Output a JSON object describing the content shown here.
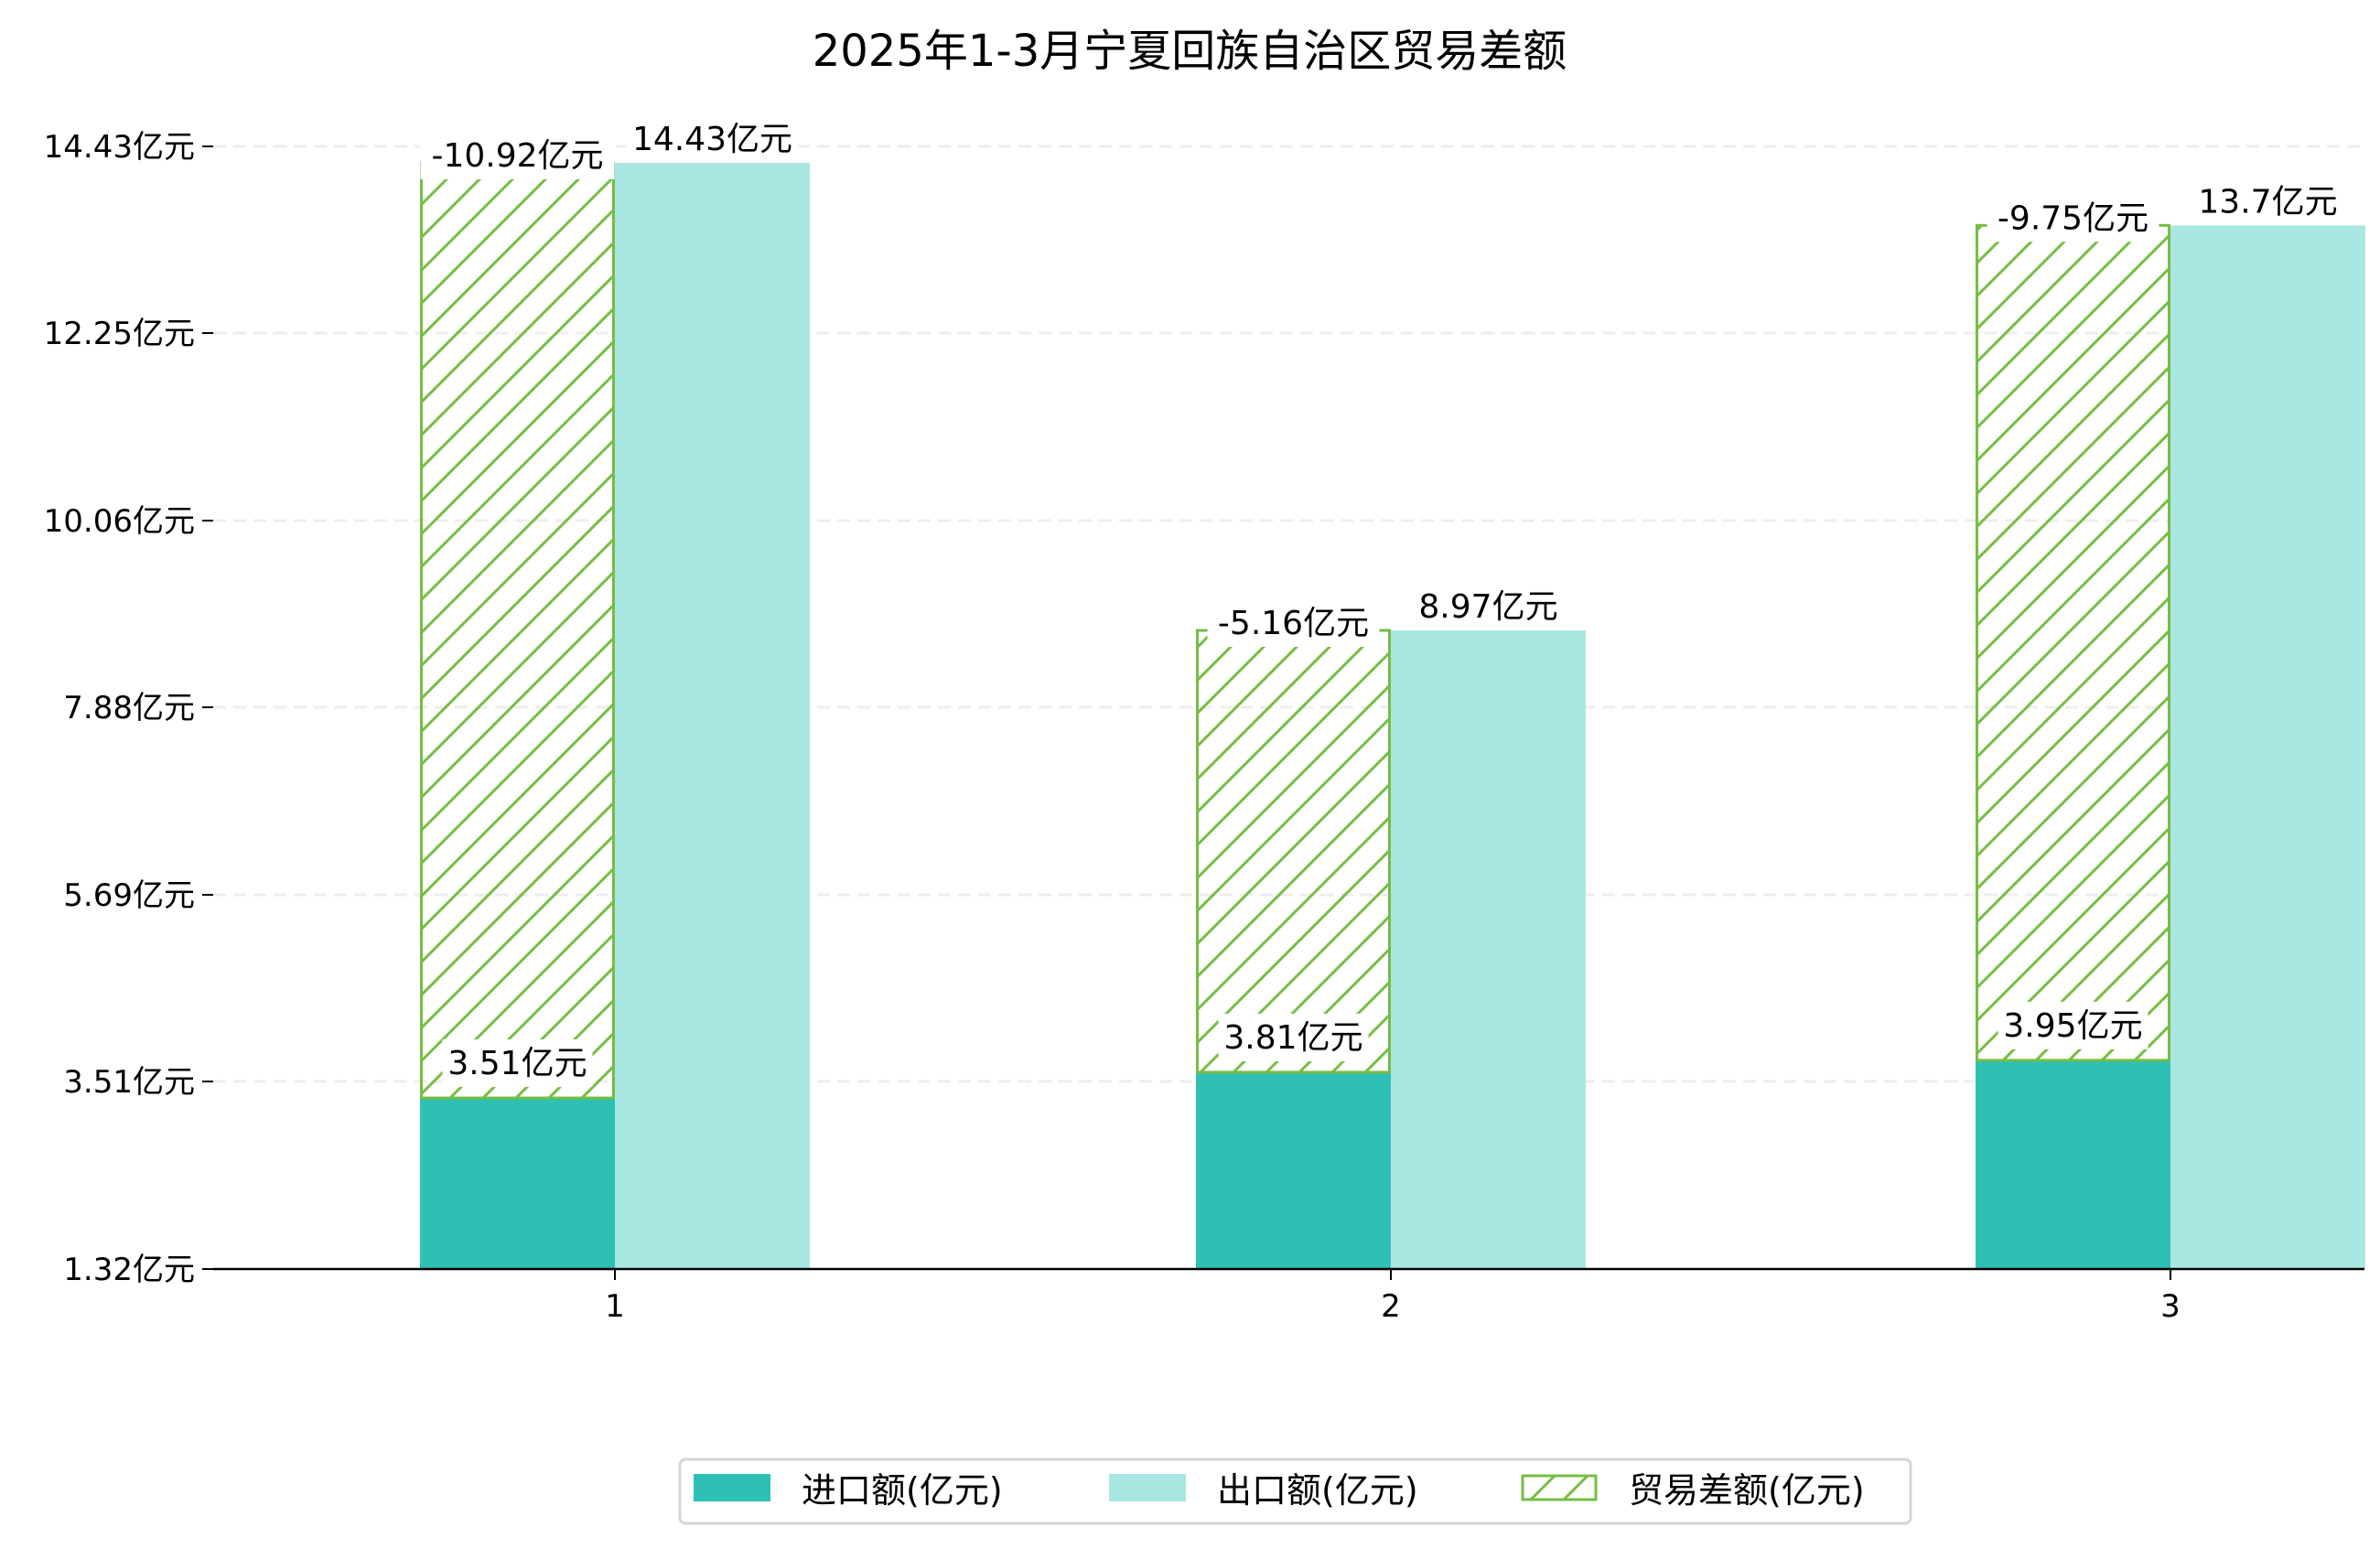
{
  "chart_data": {
    "type": "bar",
    "title": "2025年1-3月宁夏回族自治区贸易差额",
    "xlabel": "",
    "ylabel": "",
    "categories": [
      "1",
      "2",
      "3"
    ],
    "ylim": [
      1.32,
      14.43
    ],
    "yticks": [
      "1.32亿元",
      "3.51亿元",
      "5.69亿元",
      "7.88亿元",
      "10.06亿元",
      "12.25亿元",
      "14.43亿元"
    ],
    "ytick_values": [
      1.32,
      3.51,
      5.69,
      7.88,
      10.06,
      12.25,
      14.43
    ],
    "grid": "horizontal dashed",
    "legend_position": "bottom-center",
    "series": [
      {
        "name": "进口额(亿元)",
        "values": [
          3.51,
          3.81,
          3.95
        ],
        "labels": [
          "3.51亿元",
          "3.81亿元",
          "3.95亿元"
        ],
        "color": "#2ec0b4"
      },
      {
        "name": "出口额(亿元)",
        "values": [
          14.43,
          8.97,
          13.7
        ],
        "labels": [
          "14.43亿元",
          "8.97亿元",
          "13.7亿元"
        ],
        "color": "#a9e7e2"
      },
      {
        "name": "贸易差额(亿元)",
        "values": [
          -10.92,
          -5.16,
          -9.75
        ],
        "labels": [
          "-10.92亿元",
          "-5.16亿元",
          "-9.75亿元"
        ],
        "color": "#76bd44"
      }
    ]
  }
}
